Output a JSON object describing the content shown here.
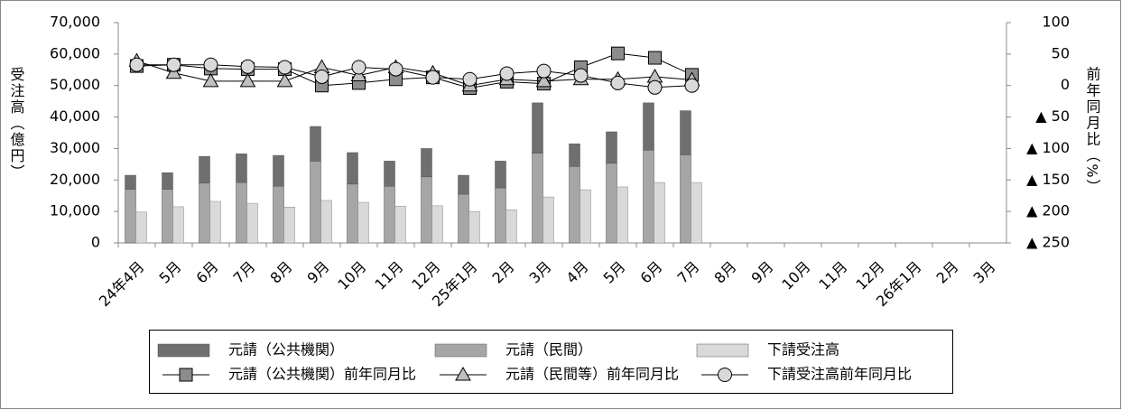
{
  "chart_data": {
    "type": "bar",
    "y_label": "受注高（億円）",
    "y2_label": "前年同月比（%）",
    "categories": [
      "24年4月",
      "5月",
      "6月",
      "7月",
      "8月",
      "9月",
      "10月",
      "11月",
      "12月",
      "25年1月",
      "2月",
      "3月",
      "4月",
      "5月",
      "6月",
      "7月",
      "8月",
      "9月",
      "10月",
      "11月",
      "12月",
      "26年1月",
      "2月",
      "3月"
    ],
    "ylim": [
      0,
      70000
    ],
    "yticks": [
      0,
      {
        "value": 10000,
        "label": "10,000"
      },
      {
        "value": 20000,
        "label": "20,000"
      },
      {
        "value": 30000,
        "label": "30,000"
      },
      {
        "value": 40000,
        "label": "40,000"
      },
      {
        "value": 50000,
        "label": "50,000"
      },
      {
        "value": 60000,
        "label": "60,000"
      },
      {
        "value": 70000,
        "label": "70,000"
      }
    ],
    "y2lim": [
      -250,
      100
    ],
    "y2ticks": [
      100,
      50,
      0,
      {
        "value": -50,
        "label": "▲ 50"
      },
      {
        "value": -100,
        "label": "▲ 100"
      },
      {
        "value": -150,
        "label": "▲ 150"
      },
      {
        "value": -200,
        "label": "▲ 200"
      },
      {
        "value": -250,
        "label": "▲ 250"
      }
    ],
    "series": [
      {
        "name": "元請（公共機関）",
        "type": "bar",
        "stacked": true,
        "color": "#6f6f6f",
        "values": [
          4500,
          5300,
          8500,
          9100,
          9800,
          11000,
          10000,
          8000,
          9000,
          6000,
          8500,
          16000,
          7200,
          10000,
          15000,
          14000,
          null,
          null,
          null,
          null,
          null,
          null,
          null,
          null
        ]
      },
      {
        "name": "元請（民間）",
        "type": "bar",
        "stacked": true,
        "color": "#a6a6a6",
        "values": [
          17000,
          17000,
          19000,
          19200,
          18000,
          26000,
          18700,
          18000,
          21000,
          15500,
          17500,
          28500,
          24300,
          25300,
          29500,
          28000,
          null,
          null,
          null,
          null,
          null,
          null,
          null,
          null
        ]
      },
      {
        "name": "下請受注高",
        "type": "bar",
        "stacked": false,
        "color": "#d9d9d9",
        "values": [
          9800,
          11500,
          13200,
          12600,
          11400,
          13500,
          12900,
          11700,
          11800,
          10000,
          10500,
          14600,
          16900,
          17800,
          19200,
          19200,
          null,
          null,
          null,
          null,
          null,
          null,
          null,
          null
        ]
      },
      {
        "name": "元請（公共機関）前年同月比",
        "type": "line",
        "axis": "y2",
        "marker": "square",
        "color": "#8c8c8c",
        "values": [
          31,
          33,
          27,
          26,
          26,
          0,
          4,
          10,
          13,
          -4,
          6,
          3,
          29,
          51,
          44,
          17,
          null,
          null,
          null,
          null,
          null,
          null,
          null,
          null
        ]
      },
      {
        "name": "元請（民間等）前年同月比",
        "type": "line",
        "axis": "y2",
        "marker": "triangle",
        "color": "#bfbfbf",
        "values": [
          39,
          20,
          7,
          7,
          7,
          29,
          16,
          29,
          20,
          0,
          10,
          7,
          10,
          10,
          14,
          9,
          null,
          null,
          null,
          null,
          null,
          null,
          null,
          null
        ]
      },
      {
        "name": "下請受注高前年同月比",
        "type": "line",
        "axis": "y2",
        "marker": "circle",
        "color": "#d9d9d9",
        "values": [
          33,
          33,
          33,
          30,
          29,
          14,
          29,
          26,
          13,
          10,
          19,
          23,
          16,
          4,
          -3,
          0,
          null,
          null,
          null,
          null,
          null,
          null,
          null,
          null
        ]
      }
    ]
  }
}
